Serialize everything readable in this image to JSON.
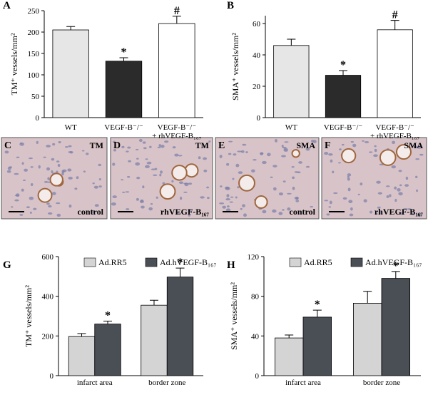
{
  "chart_data": [
    {
      "panel": "A",
      "type": "bar",
      "ylabel": "TM⁺ vessels/mm²",
      "categories": [
        "WT",
        "VEGF-B⁻/⁻",
        "VEGF-B⁻/⁻\n+ rhVEGF-B₁₆₇"
      ],
      "values": [
        205,
        132,
        220
      ],
      "errors": [
        8,
        8,
        17
      ],
      "colors": [
        "#e6e6e6",
        "#2b2b2b",
        "#ffffff"
      ],
      "bar_labels": [
        null,
        "*",
        "#"
      ],
      "ylim": [
        0,
        250
      ],
      "yticks": [
        0,
        50,
        100,
        150,
        200,
        250
      ]
    },
    {
      "panel": "B",
      "type": "bar",
      "ylabel": "SMA⁺ vessels/mm²",
      "categories": [
        "WT",
        "VEGF-B⁻/⁻",
        "VEGF-B⁻/⁻\n+ rhVEGF-B₁₆₇"
      ],
      "values": [
        46,
        27,
        56
      ],
      "errors": [
        4,
        3,
        6
      ],
      "colors": [
        "#e6e6e6",
        "#2b2b2b",
        "#ffffff"
      ],
      "bar_labels": [
        null,
        "*",
        "#"
      ],
      "ylim": [
        0,
        65
      ],
      "yticks": [
        0,
        20,
        40,
        60
      ]
    },
    {
      "panel": "G",
      "type": "grouped-bar",
      "ylabel": "TM⁺ vessels/mm²",
      "categories": [
        "infarct area",
        "border zone"
      ],
      "series": [
        {
          "name": "Ad.RR5",
          "color": "#d4d4d4",
          "values": [
            197,
            355
          ],
          "errors": [
            15,
            25
          ],
          "bar_labels": [
            null,
            null
          ]
        },
        {
          "name": "Ad.hVEGF-B₁₆₇",
          "color": "#4a4e55",
          "values": [
            260,
            497
          ],
          "errors": [
            15,
            45
          ],
          "bar_labels": [
            "*",
            "*"
          ]
        }
      ],
      "ylim": [
        0,
        600
      ],
      "yticks": [
        0,
        200,
        400,
        600
      ]
    },
    {
      "panel": "H",
      "type": "grouped-bar",
      "ylabel": "SMA⁺ vessels/mm²",
      "categories": [
        "infarct area",
        "border zone"
      ],
      "series": [
        {
          "name": "Ad.RR5",
          "color": "#d4d4d4",
          "values": [
            38,
            73
          ],
          "errors": [
            3,
            12
          ],
          "bar_labels": [
            null,
            null
          ]
        },
        {
          "name": "Ad.hVEGF-B₁₆₇",
          "color": "#4a4e55",
          "values": [
            59,
            98
          ],
          "errors": [
            7,
            7
          ],
          "bar_labels": [
            "*",
            "*"
          ]
        }
      ],
      "ylim": [
        0,
        120
      ],
      "yticks": [
        0,
        40,
        80,
        120
      ]
    }
  ],
  "micrographs": [
    {
      "panel": "C",
      "stain": "TM",
      "caption": "control"
    },
    {
      "panel": "D",
      "stain": "TM",
      "caption": "rhVEGF-B₁₆₇"
    },
    {
      "panel": "E",
      "stain": "SMA",
      "caption": "control"
    },
    {
      "panel": "F",
      "stain": "SMA",
      "caption": "rhVEGF-B₁₆₇"
    }
  ]
}
